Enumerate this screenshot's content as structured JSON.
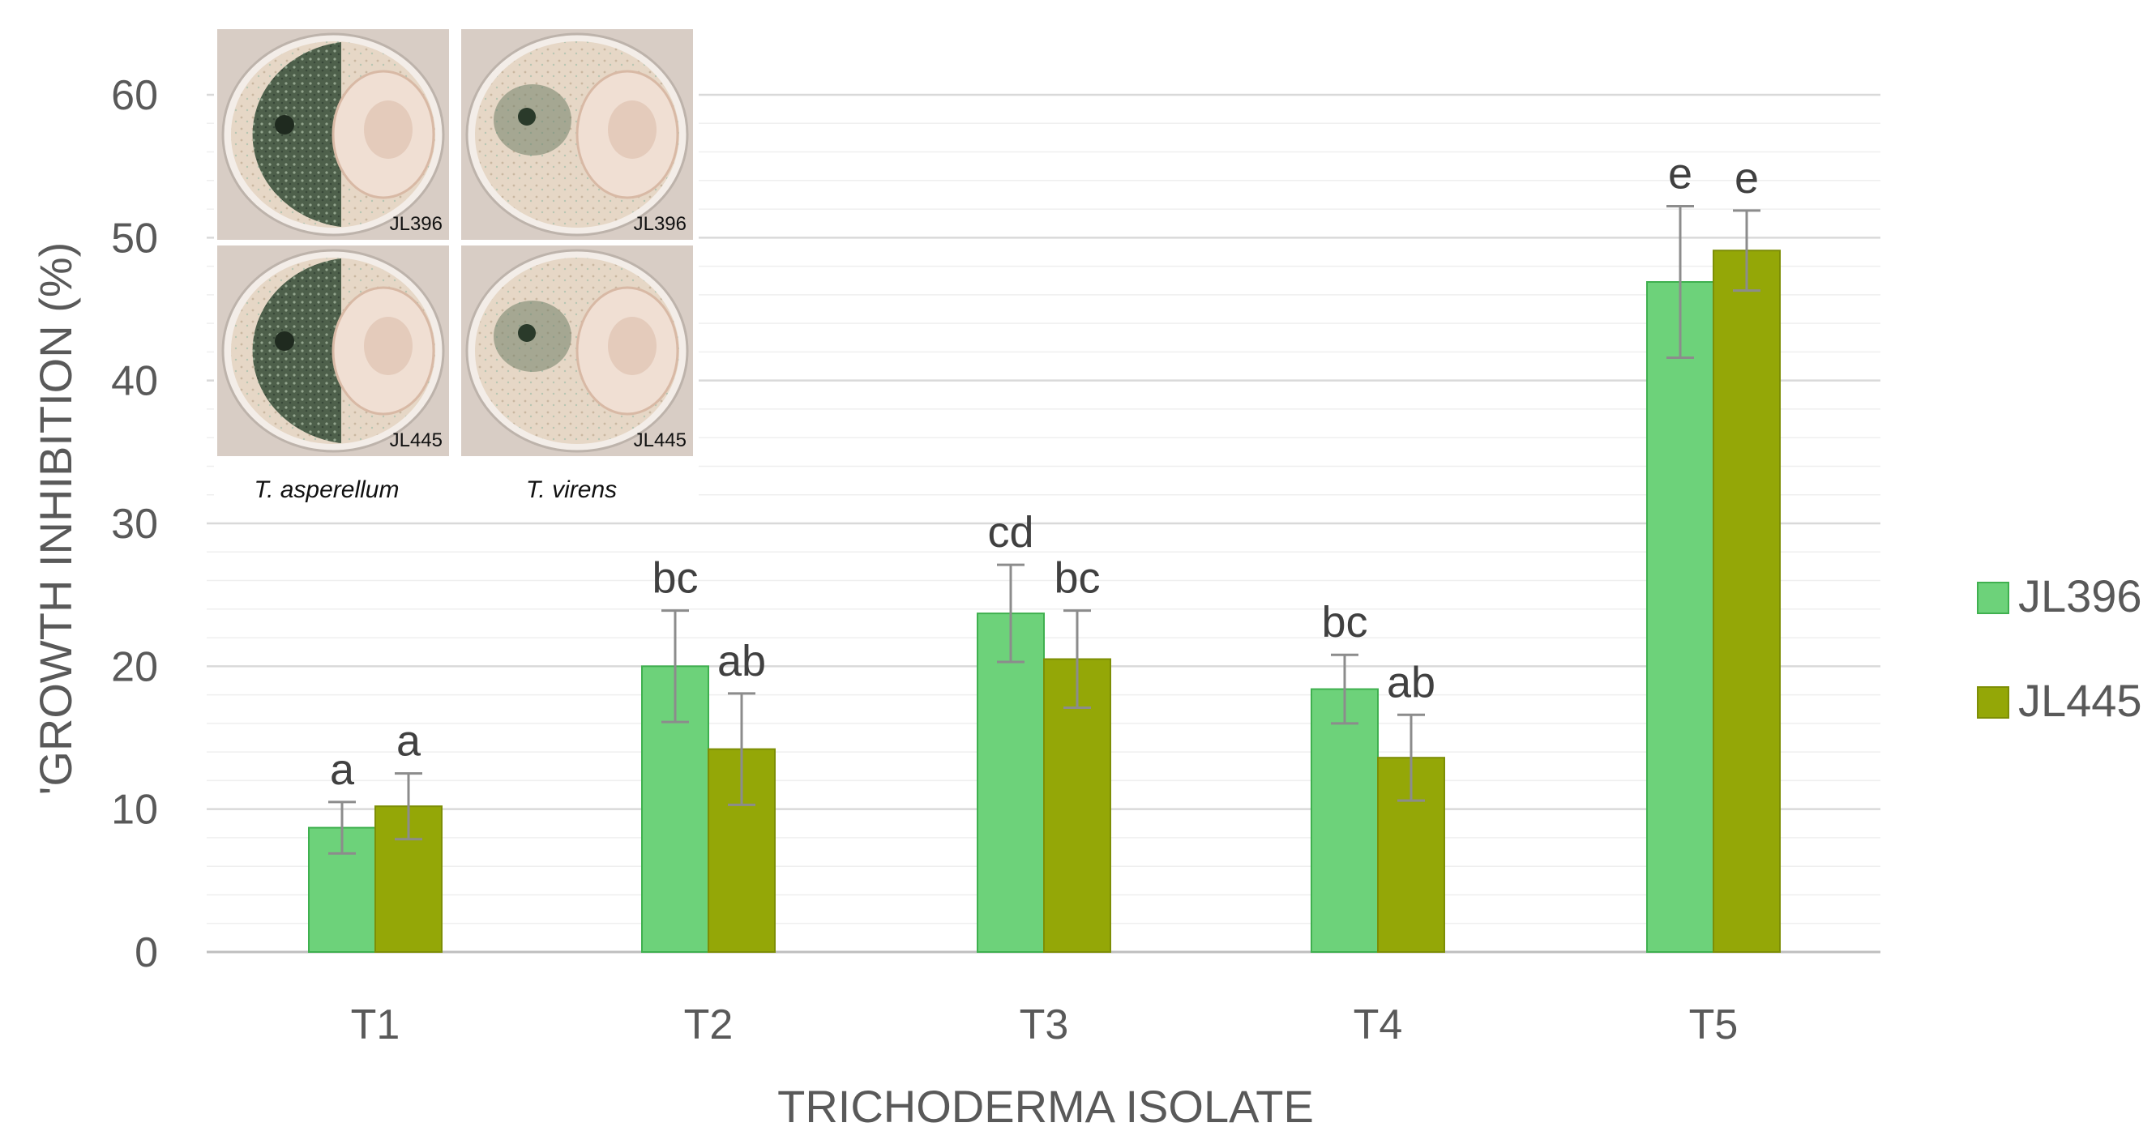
{
  "chart_data": {
    "type": "bar",
    "title": "",
    "xlabel": "TRICHODERMA ISOLATE",
    "ylabel": "'GROWTH INHIBITION (%)",
    "ylim": [
      0,
      60
    ],
    "yticks": [
      0,
      10,
      20,
      30,
      40,
      50,
      60
    ],
    "grid": true,
    "legend_position": "right",
    "categories": [
      "T1",
      "T2",
      "T3",
      "T4",
      "T5"
    ],
    "series": [
      {
        "name": "JL396",
        "color": "#6dd27a",
        "values": [
          8.7,
          20.0,
          23.7,
          18.4,
          46.9
        ],
        "errors": [
          1.8,
          3.9,
          3.4,
          2.4,
          5.3
        ],
        "letters": [
          "a",
          "bc",
          "cd",
          "bc",
          "e"
        ]
      },
      {
        "name": "JL445",
        "color": "#94a707",
        "values": [
          10.2,
          14.2,
          20.5,
          13.6,
          49.1
        ],
        "errors": [
          2.3,
          3.9,
          3.4,
          3.0,
          2.8
        ],
        "letters": [
          "a",
          "ab",
          "bc",
          "ab",
          "e"
        ]
      }
    ]
  },
  "inset": {
    "plates": [
      {
        "label": "JL396",
        "species": "asperellum",
        "isolate": "JL396"
      },
      {
        "label": "JL396",
        "species": "virens",
        "isolate": "JL396"
      },
      {
        "label": "JL445",
        "species": "asperellum",
        "isolate": "JL445"
      },
      {
        "label": "JL445",
        "species": "virens",
        "isolate": "JL445"
      }
    ],
    "captions": [
      "T. asperellum",
      "T. virens"
    ]
  },
  "colors": {
    "grid": "#d9d9d9",
    "axis_text": "#595959",
    "error_bar": "#8c8c8c"
  }
}
